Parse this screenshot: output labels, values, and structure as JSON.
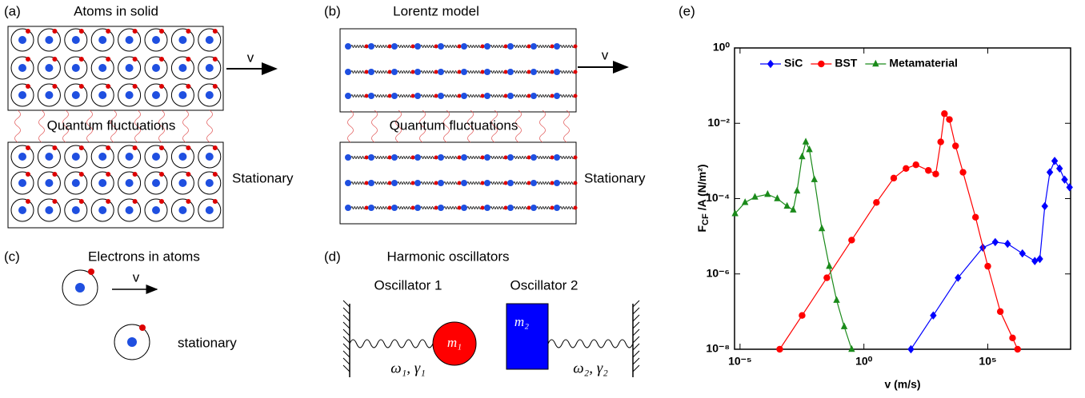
{
  "panels": {
    "a": {
      "label": "(a)",
      "title": "Atoms in solid",
      "arrow_label": "v",
      "middle": "Quantum fluctuations",
      "bottom_label": "Stationary"
    },
    "b": {
      "label": "(b)",
      "title": "Lorentz model",
      "arrow_label": "v",
      "middle": "Quantum fluctuations",
      "bottom_label": "Stationary"
    },
    "c": {
      "label": "(c)",
      "title": "Electrons in atoms",
      "arrow_label": "v",
      "bottom_label": "stationary"
    },
    "d": {
      "label": "(d)",
      "title": "Harmonic oscillators",
      "osc1": "Oscillator 1",
      "osc2": "Oscillator 2",
      "mass1": "m₁",
      "mass2": "m₂",
      "params1": "ω₁, γ₁",
      "params2": "ω₂, γ₂"
    },
    "e": {
      "label": "(e)"
    }
  },
  "chart_data": {
    "type": "line",
    "xscale": "log",
    "yscale": "log",
    "legend": "top",
    "xlabel": "v (m/s)",
    "ylabel_parts": [
      "F",
      "CF",
      "/A (N/m²)"
    ],
    "xlim": [
      6e-06,
      220000000.0
    ],
    "ylim": [
      1e-08,
      1
    ],
    "xticks": [
      {
        "value": 1e-05,
        "label": "10⁻⁵"
      },
      {
        "value": 1,
        "label": "10⁰"
      },
      {
        "value": 100000.0,
        "label": "10⁵"
      }
    ],
    "yticks": [
      {
        "value": 1e-08,
        "label": "10⁻⁸"
      },
      {
        "value": 1e-06,
        "label": "10⁻⁶"
      },
      {
        "value": 0.0001,
        "label": "10⁻⁴"
      },
      {
        "value": 0.01,
        "label": "10⁻²"
      },
      {
        "value": 1,
        "label": "10⁰"
      }
    ],
    "series": [
      {
        "name": "SiC",
        "color": "#0000ff",
        "marker": "diamond",
        "x": [
          79,
          631,
          6300,
          63000.0,
          200000.0,
          630000.0,
          2500000.0,
          7900000.0,
          12600000.0,
          20000000.0,
          32000000.0,
          50000000.0,
          79000000.0,
          126000000.0,
          200000000.0
        ],
        "values": [
          1e-08,
          7.9e-08,
          7.9e-07,
          5e-06,
          7e-06,
          6.3e-06,
          3.5e-06,
          2.2e-06,
          2.5e-06,
          6.3e-05,
          0.0005,
          0.001,
          0.00063,
          0.00032,
          0.0002
        ]
      },
      {
        "name": "BST",
        "color": "#ff0000",
        "marker": "circle",
        "x": [
          0.0004,
          0.0032,
          0.032,
          0.32,
          3.2,
          16,
          50,
          126,
          400,
          794,
          1260,
          1780,
          2820,
          5000,
          10000.0,
          32000.0,
          100000.0,
          320000.0,
          1000000.0,
          1600000.0
        ],
        "values": [
          1e-08,
          7.9e-08,
          7.9e-07,
          7.9e-06,
          7.9e-05,
          0.00035,
          0.00063,
          0.00079,
          0.00056,
          0.00045,
          0.0032,
          0.018,
          0.0126,
          0.0025,
          0.0005,
          3.2e-05,
          1.6e-06,
          1e-07,
          2e-08,
          1e-08
        ]
      },
      {
        "name": "Metamaterial",
        "color": "#1a8a1a",
        "marker": "triangle",
        "x": [
          6.3e-06,
          1.6e-05,
          4e-05,
          0.00013,
          0.00032,
          0.00079,
          0.0014,
          0.002,
          0.0032,
          0.0045,
          0.0063,
          0.01,
          0.02,
          0.04,
          0.079,
          0.16,
          0.32
        ],
        "values": [
          4e-05,
          7.9e-05,
          0.00011,
          0.00013,
          0.0001,
          6.3e-05,
          5e-05,
          0.00016,
          0.0013,
          0.0032,
          0.002,
          0.00032,
          1.6e-05,
          1.6e-06,
          2e-07,
          4e-08,
          1e-08
        ]
      }
    ]
  }
}
